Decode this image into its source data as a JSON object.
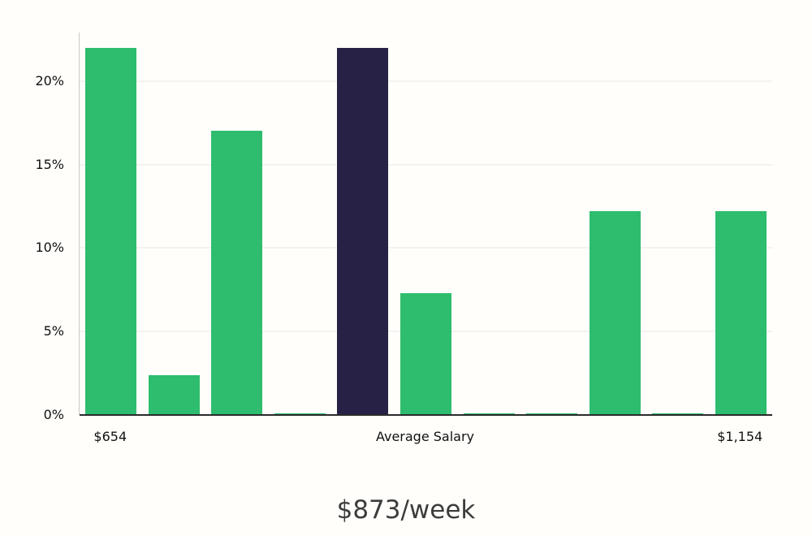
{
  "chart_data": {
    "type": "bar",
    "title": "$873/week",
    "xlabel": "",
    "ylabel": "",
    "ylim": [
      0,
      22.9
    ],
    "grid": true,
    "legend": false,
    "y_ticks": [
      0,
      5,
      10,
      15,
      20
    ],
    "y_tick_suffix": "%",
    "x_tick_labels": {
      "left": "$654",
      "center": "Average Salary",
      "right": "$1,154"
    },
    "values": [
      22,
      2.4,
      17,
      0.1,
      22,
      7.3,
      0.1,
      0.1,
      12.2,
      0.1,
      12.2
    ],
    "bar_types": [
      "normal",
      "normal",
      "normal",
      "normal",
      "highlight",
      "normal",
      "normal",
      "normal",
      "normal",
      "normal",
      "normal"
    ],
    "highlight_index": 4,
    "colors": {
      "normal": "#2ebd6e",
      "highlight": "#272145",
      "gridline": "#e6e6e6",
      "baseline": "#2b2b2b",
      "axis_line": "#c9c9c9",
      "tick_text": "#111111",
      "title_text": "#3c3c3c",
      "background": "#fffefa"
    }
  }
}
